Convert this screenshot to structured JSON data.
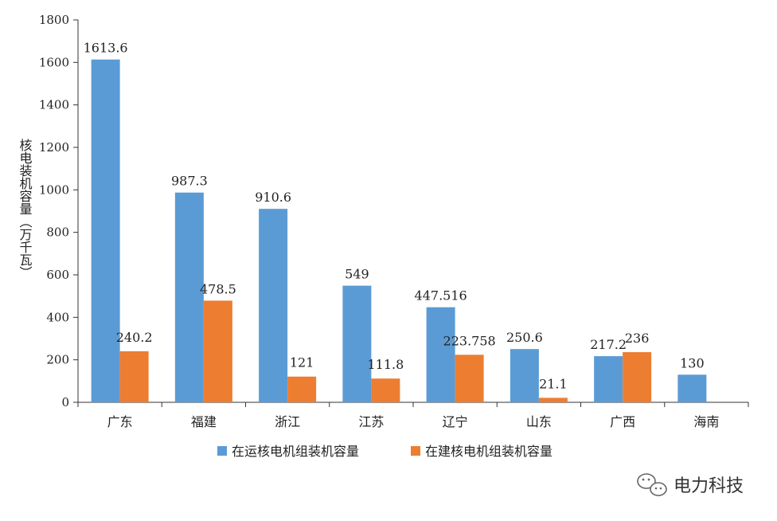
{
  "chart_data": {
    "type": "bar",
    "title": "",
    "xlabel": "",
    "ylabel": "核电装机容量（万千瓦）",
    "ylim": [
      0,
      1800
    ],
    "yticks": [
      0,
      200,
      400,
      600,
      800,
      1000,
      1200,
      1400,
      1600,
      1800
    ],
    "grid": false,
    "legend_position": "bottom",
    "categories": [
      "广东",
      "福建",
      "浙江",
      "江苏",
      "辽宁",
      "山东",
      "广西",
      "海南"
    ],
    "series": [
      {
        "name": "在运核电机组装机容量",
        "color": "#5b9bd5",
        "values": [
          1613.6,
          987.3,
          910.6,
          549,
          447.516,
          250.6,
          217.2,
          130
        ],
        "labels": [
          "1613.6",
          "987.3",
          "910.6",
          "549",
          "447.516",
          "250.6",
          "217.2",
          "130"
        ]
      },
      {
        "name": "在建核电机组装机容量",
        "color": "#ed7d31",
        "values": [
          240.2,
          478.5,
          121,
          111.8,
          223.758,
          21.1,
          236,
          null
        ],
        "labels": [
          "240.2",
          "478.5",
          "121",
          "111.8",
          "223.758",
          "21.1",
          "236",
          ""
        ]
      }
    ]
  },
  "watermark": {
    "text": "电力科技",
    "icon": "wechat-icon"
  }
}
